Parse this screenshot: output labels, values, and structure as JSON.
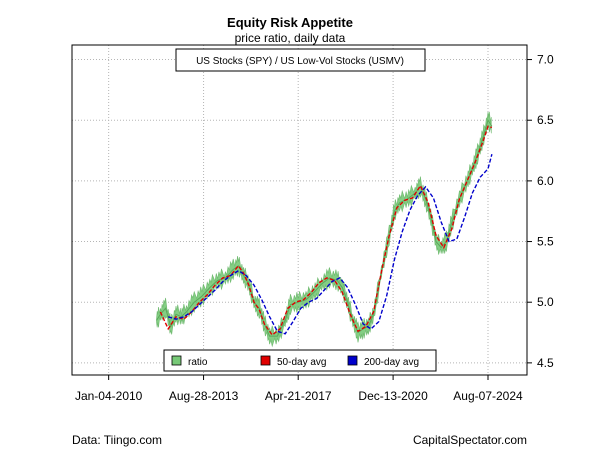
{
  "chart_data": {
    "type": "line",
    "title": "Equity Risk Appetite",
    "subtitle": "price ratio, daily data",
    "box_label": "US Stocks (SPY) / US Low-Vol Stocks (USMV)",
    "x_tick_labels": [
      "Jan-04-2010",
      "Aug-28-2013",
      "Apr-21-2017",
      "Dec-13-2020",
      "Aug-07-2024"
    ],
    "x_ticks": [
      2010.01,
      2013.66,
      2017.3,
      2020.95,
      2024.6
    ],
    "xlim": [
      2008.6,
      2026.1
    ],
    "y_ticks": [
      4.5,
      5.0,
      5.5,
      6.0,
      6.5,
      7.0
    ],
    "y_tick_labels": [
      "4.5",
      "5.0",
      "5.5",
      "6.0",
      "6.5",
      "7.0"
    ],
    "ylim": [
      4.4,
      7.12
    ],
    "grid": true,
    "legend_position": "bottom",
    "series": [
      {
        "name": "ratio",
        "color": "#77c977",
        "style": "area-band",
        "x": [
          2011.85,
          2012.0,
          2012.2,
          2012.4,
          2012.6,
          2012.8,
          2013.0,
          2013.3,
          2013.6,
          2013.9,
          2014.2,
          2014.5,
          2014.8,
          2015.0,
          2015.2,
          2015.4,
          2015.6,
          2015.8,
          2016.0,
          2016.2,
          2016.5,
          2016.8,
          2017.0,
          2017.3,
          2017.6,
          2017.9,
          2018.2,
          2018.5,
          2018.8,
          2019.0,
          2019.2,
          2019.4,
          2019.6,
          2019.8,
          2020.0,
          2020.2,
          2020.5,
          2020.8,
          2021.0,
          2021.2,
          2021.5,
          2021.8,
          2022.0,
          2022.2,
          2022.4,
          2022.6,
          2022.8,
          2023.0,
          2023.2,
          2023.5,
          2023.8,
          2024.0,
          2024.2,
          2024.4,
          2024.6,
          2024.75
        ],
        "values": [
          4.85,
          4.9,
          4.95,
          4.8,
          4.9,
          4.88,
          4.92,
          5.0,
          5.05,
          5.12,
          5.18,
          5.2,
          5.27,
          5.3,
          5.22,
          5.15,
          5.0,
          4.95,
          4.82,
          4.72,
          4.72,
          4.85,
          4.98,
          5.0,
          5.02,
          5.08,
          5.15,
          5.2,
          5.18,
          5.12,
          5.0,
          4.85,
          4.75,
          4.78,
          4.8,
          4.9,
          5.25,
          5.55,
          5.75,
          5.82,
          5.85,
          5.9,
          5.95,
          5.85,
          5.7,
          5.5,
          5.45,
          5.5,
          5.65,
          5.85,
          6.0,
          6.1,
          6.22,
          6.35,
          6.5,
          6.45
        ]
      },
      {
        "name": "50-day avg",
        "color": "#e00000",
        "style": "dashed",
        "x": [
          2012.0,
          2012.3,
          2012.6,
          2012.9,
          2013.2,
          2013.5,
          2013.8,
          2014.1,
          2014.4,
          2014.7,
          2015.0,
          2015.2,
          2015.4,
          2015.6,
          2015.8,
          2016.0,
          2016.3,
          2016.6,
          2016.9,
          2017.2,
          2017.5,
          2017.8,
          2018.1,
          2018.4,
          2018.7,
          2019.0,
          2019.3,
          2019.6,
          2019.9,
          2020.2,
          2020.5,
          2020.8,
          2021.1,
          2021.4,
          2021.7,
          2022.0,
          2022.3,
          2022.6,
          2022.9,
          2023.2,
          2023.5,
          2023.8,
          2024.1,
          2024.4,
          2024.6,
          2024.75
        ],
        "values": [
          4.92,
          4.78,
          4.88,
          4.86,
          4.92,
          5.0,
          5.06,
          5.14,
          5.2,
          5.22,
          5.3,
          5.24,
          5.14,
          5.0,
          4.94,
          4.82,
          4.73,
          4.78,
          4.95,
          5.0,
          5.02,
          5.08,
          5.16,
          5.2,
          5.18,
          5.08,
          4.9,
          4.76,
          4.8,
          4.92,
          5.25,
          5.55,
          5.78,
          5.84,
          5.86,
          5.96,
          5.82,
          5.55,
          5.45,
          5.6,
          5.85,
          6.0,
          6.15,
          6.32,
          6.45,
          6.44
        ]
      },
      {
        "name": "200-day avg",
        "color": "#0000cc",
        "style": "dashed",
        "x": [
          2012.3,
          2012.6,
          2012.9,
          2013.2,
          2013.5,
          2013.8,
          2014.1,
          2014.4,
          2014.7,
          2015.0,
          2015.3,
          2015.6,
          2015.9,
          2016.2,
          2016.5,
          2016.8,
          2017.1,
          2017.4,
          2017.7,
          2018.0,
          2018.3,
          2018.6,
          2018.9,
          2019.2,
          2019.5,
          2019.8,
          2020.1,
          2020.4,
          2020.7,
          2021.0,
          2021.3,
          2021.6,
          2021.9,
          2022.2,
          2022.5,
          2022.8,
          2023.1,
          2023.4,
          2023.7,
          2024.0,
          2024.3,
          2024.6,
          2024.75
        ],
        "values": [
          4.88,
          4.86,
          4.88,
          4.92,
          4.98,
          5.04,
          5.1,
          5.17,
          5.22,
          5.26,
          5.22,
          5.14,
          5.02,
          4.88,
          4.76,
          4.74,
          4.84,
          4.95,
          5.0,
          5.03,
          5.1,
          5.17,
          5.2,
          5.12,
          4.98,
          4.82,
          4.78,
          4.84,
          5.05,
          5.35,
          5.58,
          5.76,
          5.88,
          5.95,
          5.86,
          5.66,
          5.5,
          5.52,
          5.7,
          5.9,
          6.03,
          6.1,
          6.22
        ]
      }
    ],
    "legend": [
      "ratio",
      "50-day avg",
      "200-day avg"
    ]
  },
  "footer": {
    "left": "Data: Tiingo.com",
    "right": "CapitalSpectator.com"
  }
}
